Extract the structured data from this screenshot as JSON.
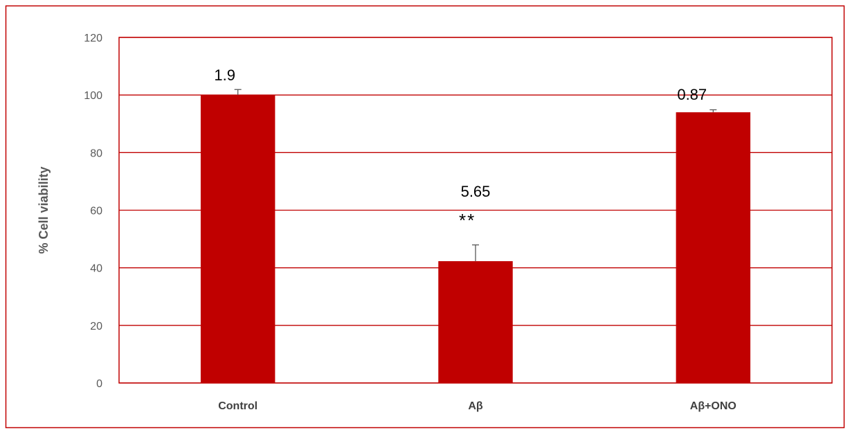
{
  "chart_data": {
    "type": "bar",
    "ylabel": "% Cell viability",
    "xlabel": "",
    "ylim": [
      0,
      120
    ],
    "yticks": [
      0,
      20,
      40,
      60,
      80,
      100,
      120
    ],
    "grid": true,
    "categories": [
      "Control",
      "Aβ",
      "Aβ+ONO"
    ],
    "values": [
      100,
      42.3,
      94
    ],
    "errors": [
      1.9,
      5.65,
      0.87
    ],
    "data_labels": [
      "1.9",
      "5.65",
      "0.87"
    ],
    "annotations": [
      "",
      "**",
      ""
    ],
    "colors": {
      "bar": "#c00000",
      "grid": "#c00000",
      "frame": "#c00000",
      "error_bar": "#595959"
    }
  }
}
